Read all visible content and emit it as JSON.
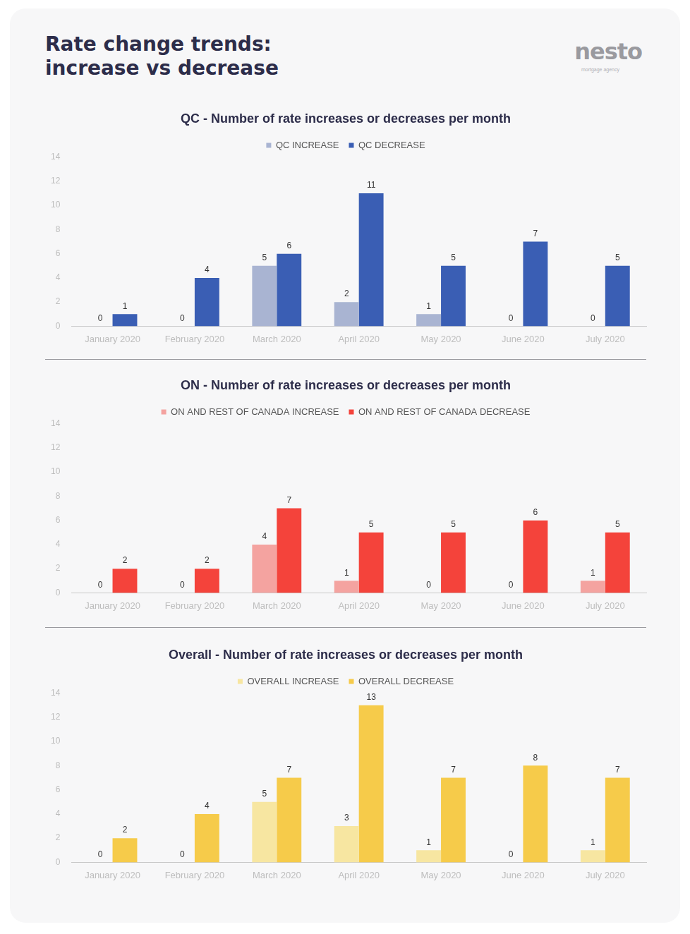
{
  "header": {
    "title": [
      "Rate change trends:",
      "increase vs decrease"
    ],
    "logo": "nesto",
    "logo_subtitle": "mortgage agency"
  },
  "chart_data": [
    {
      "type": "bar",
      "title": "QC - Number of rate increases or decreases per month",
      "categories": [
        "January 2020",
        "February 2020",
        "March 2020",
        "April 2020",
        "May 2020",
        "June 2020",
        "July 2020"
      ],
      "series": [
        {
          "name": "QC INCREASE",
          "color": "#a9b4d2",
          "values": [
            0,
            0,
            5,
            2,
            1,
            0,
            0
          ]
        },
        {
          "name": "QC DECREASE",
          "color": "#3a5eb4",
          "values": [
            1,
            4,
            6,
            11,
            5,
            7,
            5
          ]
        }
      ],
      "ylim": [
        0,
        14
      ],
      "yticks": [
        0,
        2,
        4,
        6,
        8,
        10,
        12,
        14
      ],
      "grid": false,
      "legend": "top",
      "data_labels": true
    },
    {
      "type": "bar",
      "title": "ON - Number of rate increases or decreases per month",
      "categories": [
        "January 2020",
        "February 2020",
        "March 2020",
        "April 2020",
        "May 2020",
        "June 2020",
        "July 2020"
      ],
      "series": [
        {
          "name": "ON AND REST OF CANADA INCREASE",
          "color": "#f4a3a0",
          "values": [
            0,
            0,
            4,
            1,
            0,
            0,
            1
          ]
        },
        {
          "name": "ON AND REST OF CANADA DECREASE",
          "color": "#f4433b",
          "values": [
            2,
            2,
            7,
            5,
            5,
            6,
            5
          ]
        }
      ],
      "ylim": [
        0,
        14
      ],
      "yticks": [
        0,
        2,
        4,
        6,
        8,
        10,
        12,
        14
      ],
      "grid": false,
      "legend": "top",
      "data_labels": true
    },
    {
      "type": "bar",
      "title": "Overall - Number of rate increases or decreases per month",
      "categories": [
        "January 2020",
        "February 2020",
        "March 2020",
        "April 2020",
        "May 2020",
        "June 2020",
        "July 2020"
      ],
      "series": [
        {
          "name": "OVERALL INCREASE",
          "color": "#f7e6a1",
          "values": [
            0,
            0,
            5,
            3,
            1,
            0,
            1
          ]
        },
        {
          "name": "OVERALL DECREASE",
          "color": "#f6cb4a",
          "values": [
            2,
            4,
            7,
            13,
            7,
            8,
            7
          ]
        }
      ],
      "ylim": [
        0,
        14
      ],
      "yticks": [
        0,
        2,
        4,
        6,
        8,
        10,
        12,
        14
      ],
      "grid": false,
      "legend": "top",
      "data_labels": true
    }
  ]
}
